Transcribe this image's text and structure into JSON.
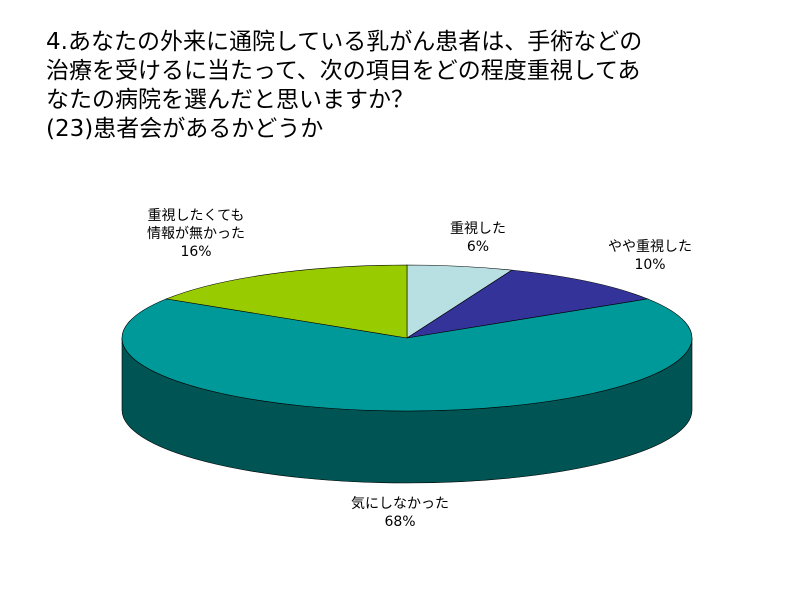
{
  "chart_data": {
    "type": "pie3d",
    "title": "4.あなたの外来に通院している乳がん患者は、手術などの\n治療を受けるに当たって、次の項目をどの程度重視してあ\nなたの病院を選んだと思いますか？\n(23)患者会があるかどうか",
    "categories": [
      "重視した",
      "やや重視した",
      "気にしなかった",
      "重視したくても\n情報が無かった"
    ],
    "values": [
      6,
      10,
      68,
      16
    ],
    "value_labels": [
      "6%",
      "10%",
      "68%",
      "16%"
    ],
    "colors": [
      "#b8dfe2",
      "#333399",
      "#009999",
      "#99cc00"
    ]
  }
}
